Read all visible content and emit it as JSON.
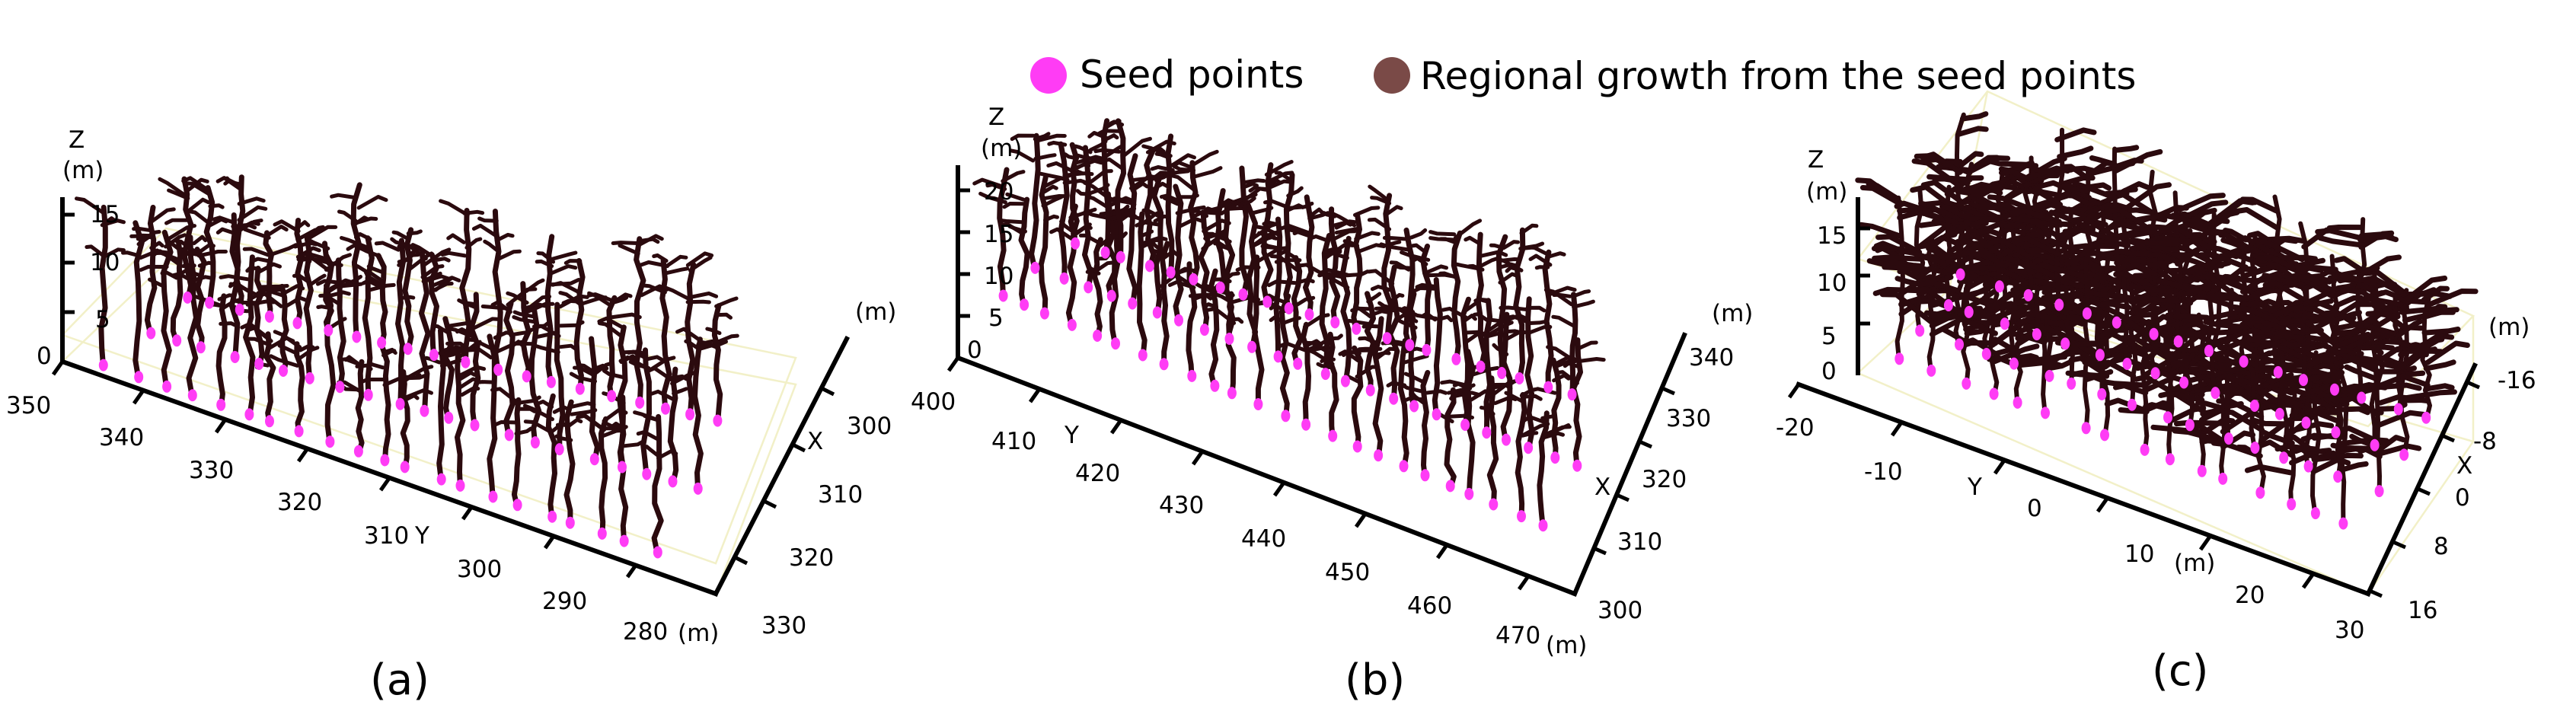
{
  "legend": {
    "items": [
      {
        "label": "Seed points",
        "color": "#ff3cf5"
      },
      {
        "label": "Regional growth from the seed points",
        "color": "#7a4a47"
      }
    ]
  },
  "colors": {
    "tree": "#2b0a0e",
    "seed": "#ff3cf5",
    "box": "#f2f0c8"
  },
  "panels": [
    {
      "caption": "(a)",
      "z": {
        "title": "Z",
        "unit": "(m)",
        "ticks": [
          "15",
          "10",
          "5",
          "0"
        ]
      },
      "y": {
        "ticks": [
          "350",
          "340",
          "330",
          "320",
          "310",
          "300",
          "290",
          "280"
        ],
        "label": "Y",
        "unit": "(m)"
      },
      "x": {
        "ticks": [
          "300",
          "310",
          "320",
          "330"
        ],
        "label": "X",
        "unit": "(m)"
      },
      "tree_count": 62
    },
    {
      "caption": "(b)",
      "z": {
        "title": "Z",
        "unit": "(m)",
        "ticks": [
          "20",
          "15",
          "10",
          "5",
          "0"
        ]
      },
      "y": {
        "ticks": [
          "400",
          "410",
          "420",
          "430",
          "440",
          "450",
          "460",
          "470"
        ],
        "label": "Y",
        "unit": "(m)"
      },
      "x": {
        "ticks": [
          "340",
          "330",
          "320",
          "310",
          "300"
        ],
        "label": "X",
        "unit": "(m)"
      },
      "tree_count": 70
    },
    {
      "caption": "(c)",
      "z": {
        "title": "Z",
        "unit": "(m)",
        "ticks": [
          "15",
          "10",
          "5",
          "0"
        ]
      },
      "y": {
        "ticks": [
          "-20",
          "-10",
          "0",
          "10",
          "20",
          "30"
        ],
        "label": "Y",
        "unit": "(m)"
      },
      "x": {
        "ticks": [
          "-16",
          "-8",
          "0",
          "8",
          "16"
        ],
        "label": "X",
        "unit": "(m)"
      },
      "tree_count": 64
    }
  ]
}
